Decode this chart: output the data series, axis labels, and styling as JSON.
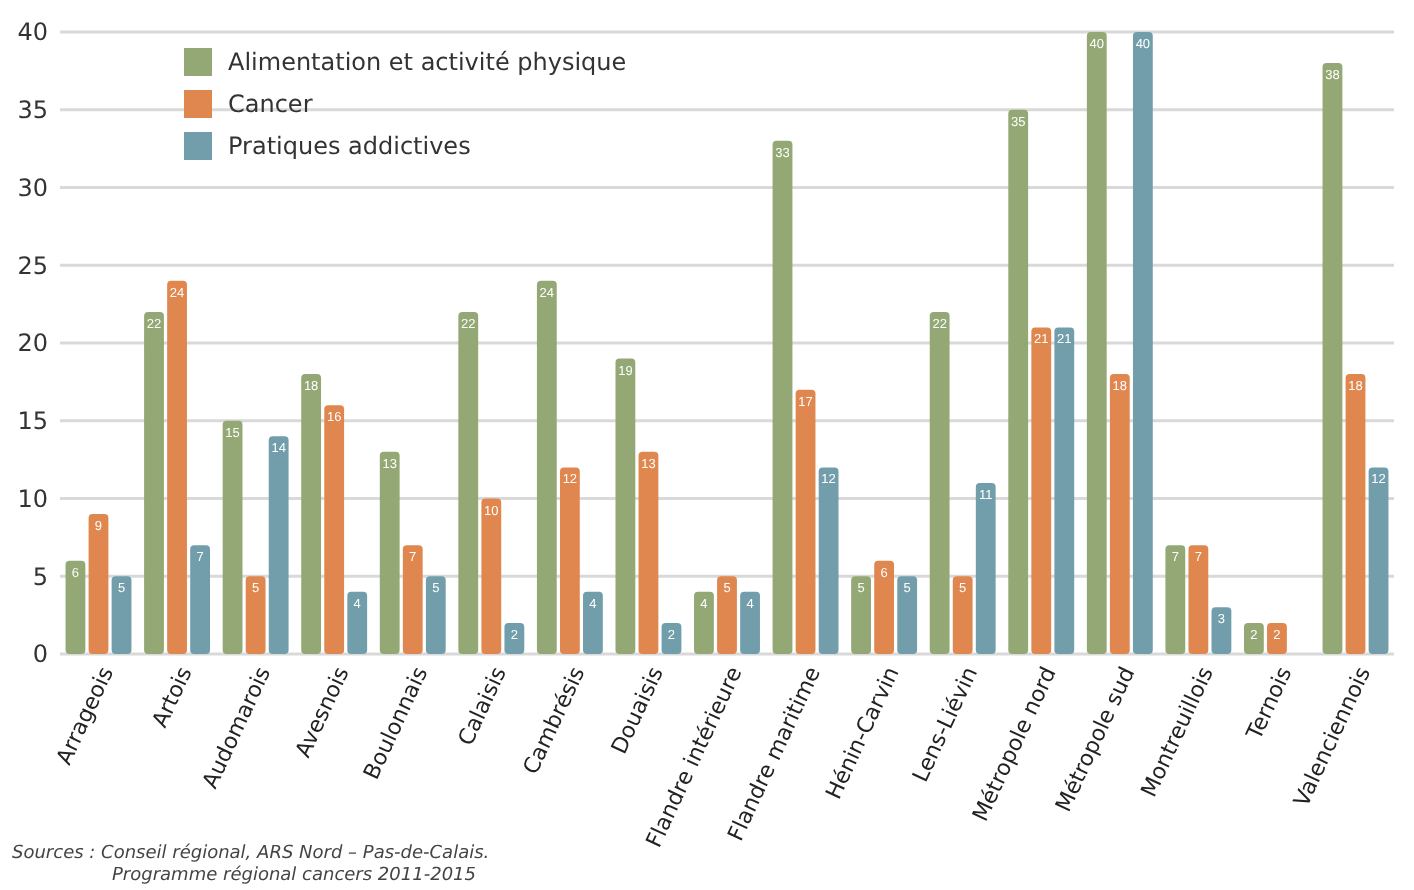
{
  "chart_data": {
    "type": "bar",
    "categories": [
      "Arrageois",
      "Artois",
      "Audomarois",
      "Avesnois",
      "Boulonnais",
      "Calaisis",
      "Cambrésis",
      "Douaisis",
      "Flandre intérieure",
      "Flandre maritime",
      "Hénin-Carvin",
      "Lens-Liévin",
      "Métropole nord",
      "Métropole sud",
      "Montreuillois",
      "Ternois",
      "Valenciennois"
    ],
    "series": [
      {
        "name": "Alimentation et activité physique",
        "color": "#93a874",
        "values": [
          6,
          22,
          15,
          18,
          13,
          22,
          24,
          19,
          4,
          33,
          5,
          22,
          35,
          40,
          7,
          2,
          38
        ]
      },
      {
        "name": "Cancer",
        "color": "#e0874f",
        "values": [
          9,
          24,
          5,
          16,
          7,
          10,
          12,
          13,
          5,
          17,
          6,
          5,
          21,
          18,
          7,
          2,
          18
        ]
      },
      {
        "name": "Pratiques addictives",
        "color": "#729eac",
        "values": [
          5,
          7,
          14,
          4,
          5,
          2,
          4,
          2,
          4,
          12,
          5,
          11,
          21,
          40,
          3,
          null,
          12
        ]
      }
    ],
    "ylim": [
      0,
      40
    ],
    "yticks": [
      0,
      5,
      10,
      15,
      20,
      25,
      30,
      35,
      40
    ],
    "grid": "y",
    "legend": "top left",
    "data_labels": true,
    "annotations": [
      "Sources : Conseil régional, ARS Nord – Pas-de-Calais.",
      "Programme régional cancers 2011-2015"
    ]
  }
}
